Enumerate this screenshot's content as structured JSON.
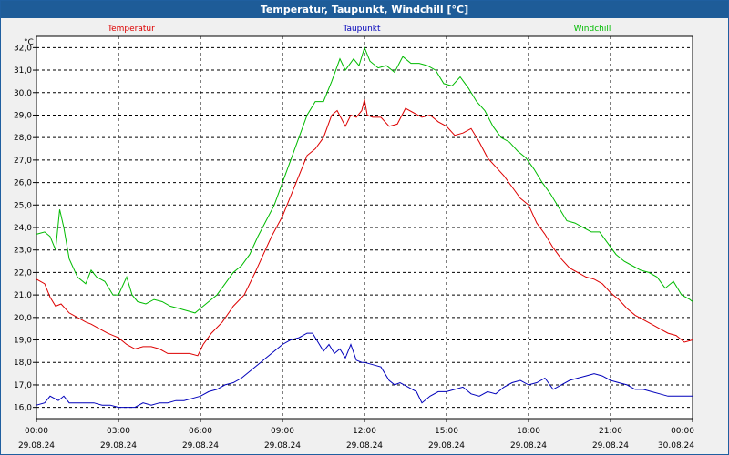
{
  "window": {
    "title": "Temperatur, Taupunkt, Windchill [°C]"
  },
  "chart_data": {
    "type": "line",
    "title": "Temperatur, Taupunkt, Windchill [°C]",
    "ylabel": "°C",
    "ylim": [
      15.5,
      32.5
    ],
    "grid": true,
    "legend_position": "top",
    "y_ticks": [
      "16,0",
      "17,0",
      "18,0",
      "19,0",
      "20,0",
      "21,0",
      "22,0",
      "23,0",
      "24,0",
      "25,0",
      "26,0",
      "27,0",
      "28,0",
      "29,0",
      "30,0",
      "31,0",
      "32,0"
    ],
    "x_range_hours": [
      0,
      24
    ],
    "x_ticks": [
      {
        "time": "00:00",
        "date": "29.08.24"
      },
      {
        "time": "03:00",
        "date": "29.08.24"
      },
      {
        "time": "06:00",
        "date": "29.08.24"
      },
      {
        "time": "09:00",
        "date": "29.08.24"
      },
      {
        "time": "12:00",
        "date": "29.08.24"
      },
      {
        "time": "15:00",
        "date": "29.08.24"
      },
      {
        "time": "18:00",
        "date": "29.08.24"
      },
      {
        "time": "21:00",
        "date": "29.08.24"
      },
      {
        "time": "00:00",
        "date": "30.08.24"
      }
    ],
    "series": [
      {
        "name": "Temperatur",
        "color": "#dd0000",
        "x": [
          0,
          0.3,
          0.5,
          0.7,
          0.9,
          1.2,
          1.5,
          1.8,
          2.0,
          2.3,
          2.6,
          3.0,
          3.3,
          3.6,
          3.9,
          4.2,
          4.5,
          4.8,
          5.2,
          5.6,
          5.9,
          6.1,
          6.4,
          6.8,
          7.2,
          7.6,
          8.0,
          8.3,
          8.6,
          9.0,
          9.3,
          9.6,
          9.9,
          10.2,
          10.5,
          10.8,
          11.0,
          11.3,
          11.5,
          11.7,
          11.9,
          12.0,
          12.1,
          12.3,
          12.6,
          12.9,
          13.2,
          13.5,
          13.8,
          14.1,
          14.4,
          14.7,
          15.0,
          15.3,
          15.6,
          15.9,
          16.2,
          16.5,
          16.8,
          17.1,
          17.4,
          17.7,
          18.0,
          18.3,
          18.6,
          18.9,
          19.2,
          19.5,
          19.8,
          20.1,
          20.4,
          20.7,
          21.0,
          21.3,
          21.6,
          21.9,
          22.2,
          22.5,
          22.8,
          23.1,
          23.4,
          23.7,
          24.0
        ],
        "values": [
          21.7,
          21.5,
          20.9,
          20.5,
          20.6,
          20.2,
          20.0,
          19.8,
          19.7,
          19.5,
          19.3,
          19.1,
          18.8,
          18.6,
          18.7,
          18.7,
          18.6,
          18.4,
          18.4,
          18.4,
          18.3,
          18.8,
          19.3,
          19.8,
          20.5,
          21.0,
          22.0,
          22.8,
          23.6,
          24.5,
          25.4,
          26.3,
          27.2,
          27.5,
          28.0,
          29.0,
          29.2,
          28.5,
          29.0,
          28.9,
          29.2,
          29.7,
          29.0,
          28.9,
          28.9,
          28.5,
          28.6,
          29.3,
          29.1,
          28.9,
          29.0,
          28.7,
          28.5,
          28.1,
          28.2,
          28.4,
          27.8,
          27.1,
          26.7,
          26.3,
          25.8,
          25.3,
          25.0,
          24.2,
          23.7,
          23.1,
          22.6,
          22.2,
          22.0,
          21.8,
          21.7,
          21.5,
          21.1,
          20.8,
          20.4,
          20.1,
          19.9,
          19.7,
          19.5,
          19.3,
          19.2,
          18.9,
          19.0
        ]
      },
      {
        "name": "Taupunkt",
        "color": "#0000bb",
        "x": [
          0,
          0.3,
          0.5,
          0.8,
          1.0,
          1.2,
          1.5,
          1.8,
          2.1,
          2.4,
          2.7,
          3.0,
          3.3,
          3.6,
          3.9,
          4.2,
          4.5,
          4.8,
          5.1,
          5.4,
          5.7,
          6.0,
          6.3,
          6.6,
          6.9,
          7.2,
          7.5,
          7.8,
          8.1,
          8.4,
          8.7,
          9.0,
          9.3,
          9.6,
          9.9,
          10.1,
          10.3,
          10.5,
          10.7,
          10.9,
          11.1,
          11.3,
          11.5,
          11.7,
          11.9,
          12.0,
          12.3,
          12.6,
          12.9,
          13.1,
          13.3,
          13.6,
          13.9,
          14.1,
          14.4,
          14.7,
          15.0,
          15.3,
          15.6,
          15.9,
          16.2,
          16.5,
          16.8,
          17.1,
          17.4,
          17.7,
          18.0,
          18.3,
          18.6,
          18.9,
          19.2,
          19.5,
          19.8,
          20.1,
          20.4,
          20.7,
          21.0,
          21.3,
          21.6,
          21.9,
          22.2,
          22.5,
          22.8,
          23.1,
          23.4,
          23.7,
          24.0
        ],
        "values": [
          16.1,
          16.2,
          16.5,
          16.3,
          16.5,
          16.2,
          16.2,
          16.2,
          16.2,
          16.1,
          16.1,
          16.0,
          16.0,
          16.0,
          16.2,
          16.1,
          16.2,
          16.2,
          16.3,
          16.3,
          16.4,
          16.5,
          16.7,
          16.8,
          17.0,
          17.1,
          17.3,
          17.6,
          17.9,
          18.2,
          18.5,
          18.8,
          19.0,
          19.1,
          19.3,
          19.3,
          18.9,
          18.5,
          18.8,
          18.4,
          18.6,
          18.2,
          18.8,
          18.1,
          18.0,
          18.0,
          17.9,
          17.8,
          17.2,
          17.0,
          17.1,
          16.9,
          16.7,
          16.2,
          16.5,
          16.7,
          16.7,
          16.8,
          16.9,
          16.6,
          16.5,
          16.7,
          16.6,
          16.9,
          17.1,
          17.2,
          17.0,
          17.1,
          17.3,
          16.8,
          17.0,
          17.2,
          17.3,
          17.4,
          17.5,
          17.4,
          17.2,
          17.1,
          17.0,
          16.8,
          16.8,
          16.7,
          16.6,
          16.5,
          16.5,
          16.5,
          16.5
        ]
      },
      {
        "name": "Windchill",
        "color": "#00bb00",
        "x": [
          0,
          0.3,
          0.5,
          0.7,
          0.85,
          1.0,
          1.2,
          1.5,
          1.8,
          2.0,
          2.2,
          2.5,
          2.8,
          3.0,
          3.3,
          3.5,
          3.7,
          4.0,
          4.3,
          4.6,
          4.9,
          5.2,
          5.5,
          5.8,
          6.0,
          6.3,
          6.6,
          6.9,
          7.2,
          7.5,
          7.8,
          8.1,
          8.4,
          8.7,
          9.0,
          9.3,
          9.6,
          9.9,
          10.2,
          10.5,
          10.8,
          11.1,
          11.3,
          11.6,
          11.8,
          12.0,
          12.2,
          12.5,
          12.8,
          13.1,
          13.4,
          13.7,
          14.0,
          14.3,
          14.6,
          14.9,
          15.2,
          15.5,
          15.8,
          16.1,
          16.4,
          16.7,
          17.0,
          17.3,
          17.6,
          17.9,
          18.2,
          18.5,
          18.8,
          19.1,
          19.4,
          19.7,
          20.0,
          20.3,
          20.6,
          20.9,
          21.2,
          21.5,
          21.8,
          22.1,
          22.4,
          22.7,
          23.0,
          23.3,
          23.6,
          23.9,
          24.0
        ],
        "values": [
          23.7,
          23.8,
          23.6,
          23.0,
          24.8,
          24.0,
          22.6,
          21.8,
          21.5,
          22.1,
          21.8,
          21.6,
          21.0,
          21.0,
          21.8,
          21.0,
          20.7,
          20.6,
          20.8,
          20.7,
          20.5,
          20.4,
          20.3,
          20.2,
          20.4,
          20.7,
          21.0,
          21.5,
          22.0,
          22.3,
          22.8,
          23.6,
          24.3,
          25.0,
          26.0,
          27.0,
          28.0,
          29.0,
          29.6,
          29.6,
          30.5,
          31.5,
          31.0,
          31.5,
          31.2,
          32.0,
          31.4,
          31.1,
          31.2,
          30.9,
          31.6,
          31.3,
          31.3,
          31.2,
          31.0,
          30.4,
          30.3,
          30.7,
          30.2,
          29.6,
          29.2,
          28.5,
          28.0,
          27.8,
          27.4,
          27.1,
          26.6,
          26.0,
          25.5,
          24.9,
          24.3,
          24.2,
          24.0,
          23.8,
          23.8,
          23.3,
          22.8,
          22.5,
          22.3,
          22.1,
          22.0,
          21.8,
          21.3,
          21.6,
          21.0,
          20.8,
          20.7
        ]
      }
    ]
  }
}
